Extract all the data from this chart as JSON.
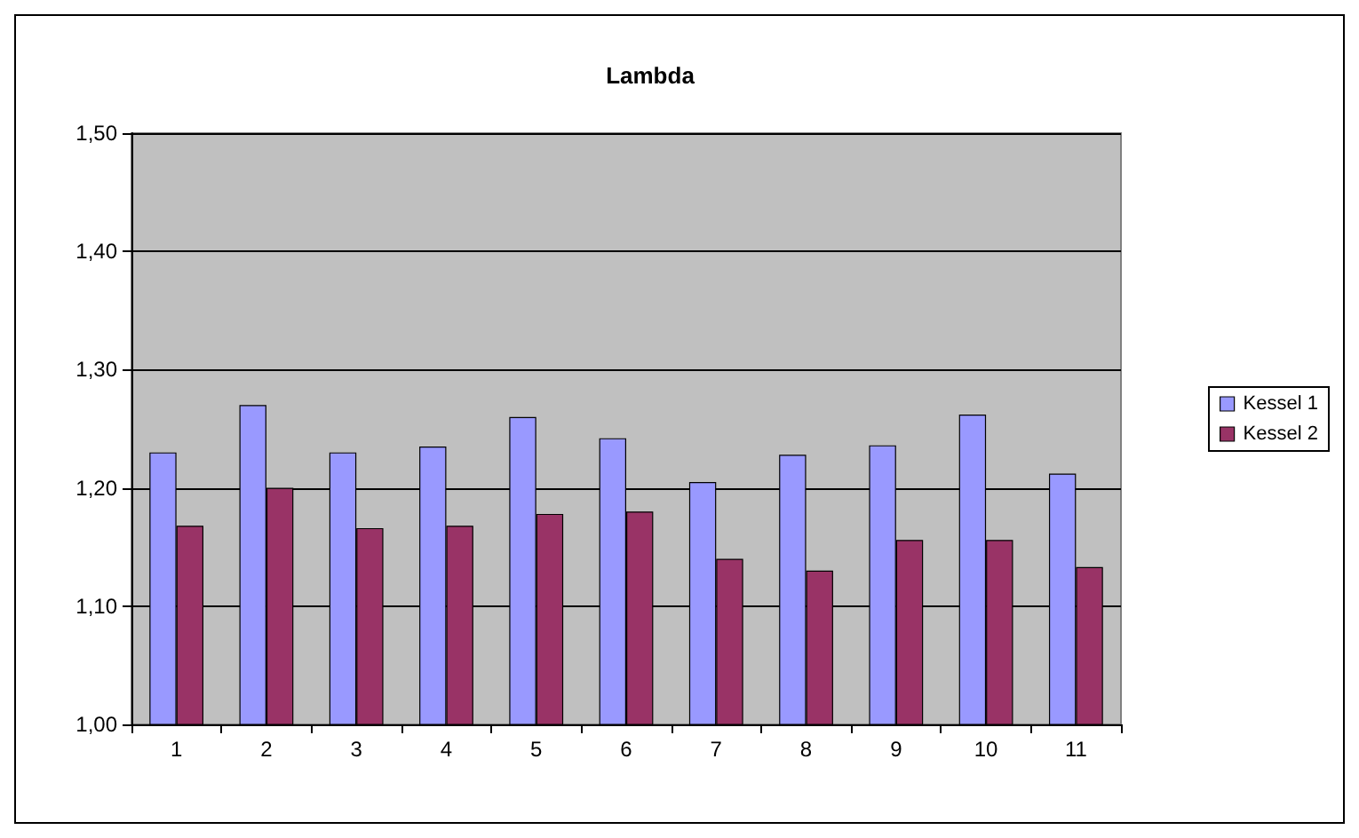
{
  "chart_data": {
    "type": "bar",
    "title": "Lambda",
    "categories": [
      "1",
      "2",
      "3",
      "4",
      "5",
      "6",
      "7",
      "8",
      "9",
      "10",
      "11"
    ],
    "series": [
      {
        "name": "Kessel 1",
        "color": "#9999ff",
        "values": [
          1.23,
          1.27,
          1.23,
          1.235,
          1.26,
          1.242,
          1.205,
          1.228,
          1.236,
          1.262,
          1.212
        ]
      },
      {
        "name": "Kessel 2",
        "color": "#993366",
        "values": [
          1.168,
          1.2,
          1.166,
          1.168,
          1.178,
          1.18,
          1.14,
          1.13,
          1.156,
          1.156,
          1.133
        ]
      }
    ],
    "ylim": [
      1,
      1.5
    ],
    "yticks": [
      {
        "value": 1,
        "label": "1,00"
      },
      {
        "value": 1.1,
        "label": "1,10"
      },
      {
        "value": 1.2,
        "label": "1,20"
      },
      {
        "value": 1.3,
        "label": "1,30"
      },
      {
        "value": 1.4,
        "label": "1,40"
      },
      {
        "value": 1.5,
        "label": "1,50"
      }
    ],
    "grid": "y",
    "legend": "right"
  }
}
